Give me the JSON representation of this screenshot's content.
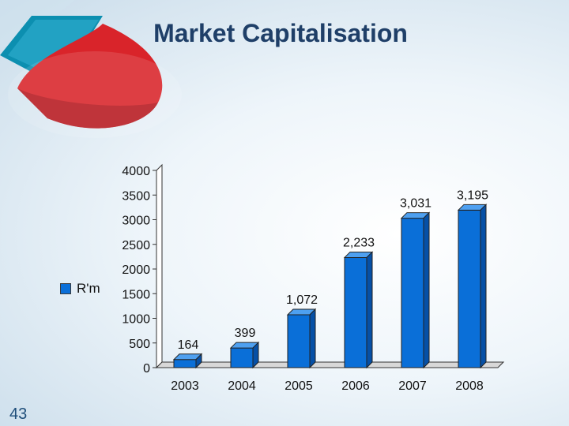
{
  "slide": {
    "number": "43"
  },
  "colors": {
    "bar": "#0a6fd8",
    "bar_top": "#4ea0f0",
    "bar_side": "#0650a6",
    "title": "#1f3f68",
    "pie_red": "#d9242a",
    "pie_teal": "#0c8fb0"
  },
  "chart_data": {
    "type": "bar",
    "title": "Market Capitalisation",
    "categories": [
      "2003",
      "2004",
      "2005",
      "2006",
      "2007",
      "2008"
    ],
    "series": [
      {
        "name": "R'm",
        "values": [
          164,
          399,
          1072,
          2233,
          3031,
          3195
        ]
      }
    ],
    "data_labels": [
      "164",
      "399",
      "1,072",
      "2,233",
      "3,031",
      "3,195"
    ],
    "ylim": [
      0,
      4000
    ],
    "y_ticks": [
      0,
      500,
      1000,
      1500,
      2000,
      2500,
      3000,
      3500,
      4000
    ],
    "grid": false,
    "legend": "left",
    "style": "3d-column"
  }
}
